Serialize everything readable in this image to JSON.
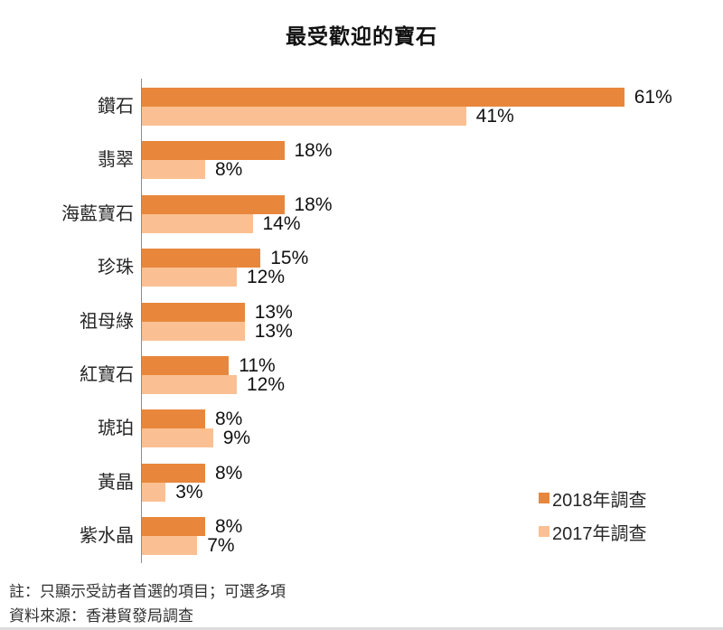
{
  "title": "最受歡迎的寶石",
  "chart_data": {
    "type": "bar",
    "orientation": "horizontal",
    "categories": [
      "鑽石",
      "翡翠",
      "海藍寶石",
      "珍珠",
      "祖母綠",
      "紅寶石",
      "琥珀",
      "黃晶",
      "紫水晶"
    ],
    "series": [
      {
        "name": "2018年調查",
        "color": "#e8873c",
        "values": [
          61,
          18,
          18,
          15,
          13,
          11,
          8,
          8,
          8
        ]
      },
      {
        "name": "2017年調查",
        "color": "#fac093",
        "values": [
          41,
          8,
          14,
          12,
          13,
          12,
          9,
          3,
          7
        ]
      }
    ],
    "value_suffix": "%",
    "xlim": [
      0,
      70
    ],
    "grid": false,
    "legend_position": "bottom-right",
    "data_labels": true
  },
  "notes": {
    "note": "註：只顯示受訪者首選的項目；可選多項",
    "source": "資料來源：香港貿發局調查"
  },
  "colors": {
    "series_2018": "#e8873c",
    "series_2017": "#fac093",
    "axis": "#8c8c8c",
    "text": "#262626",
    "bottom_rule": "#dcdcdc"
  }
}
